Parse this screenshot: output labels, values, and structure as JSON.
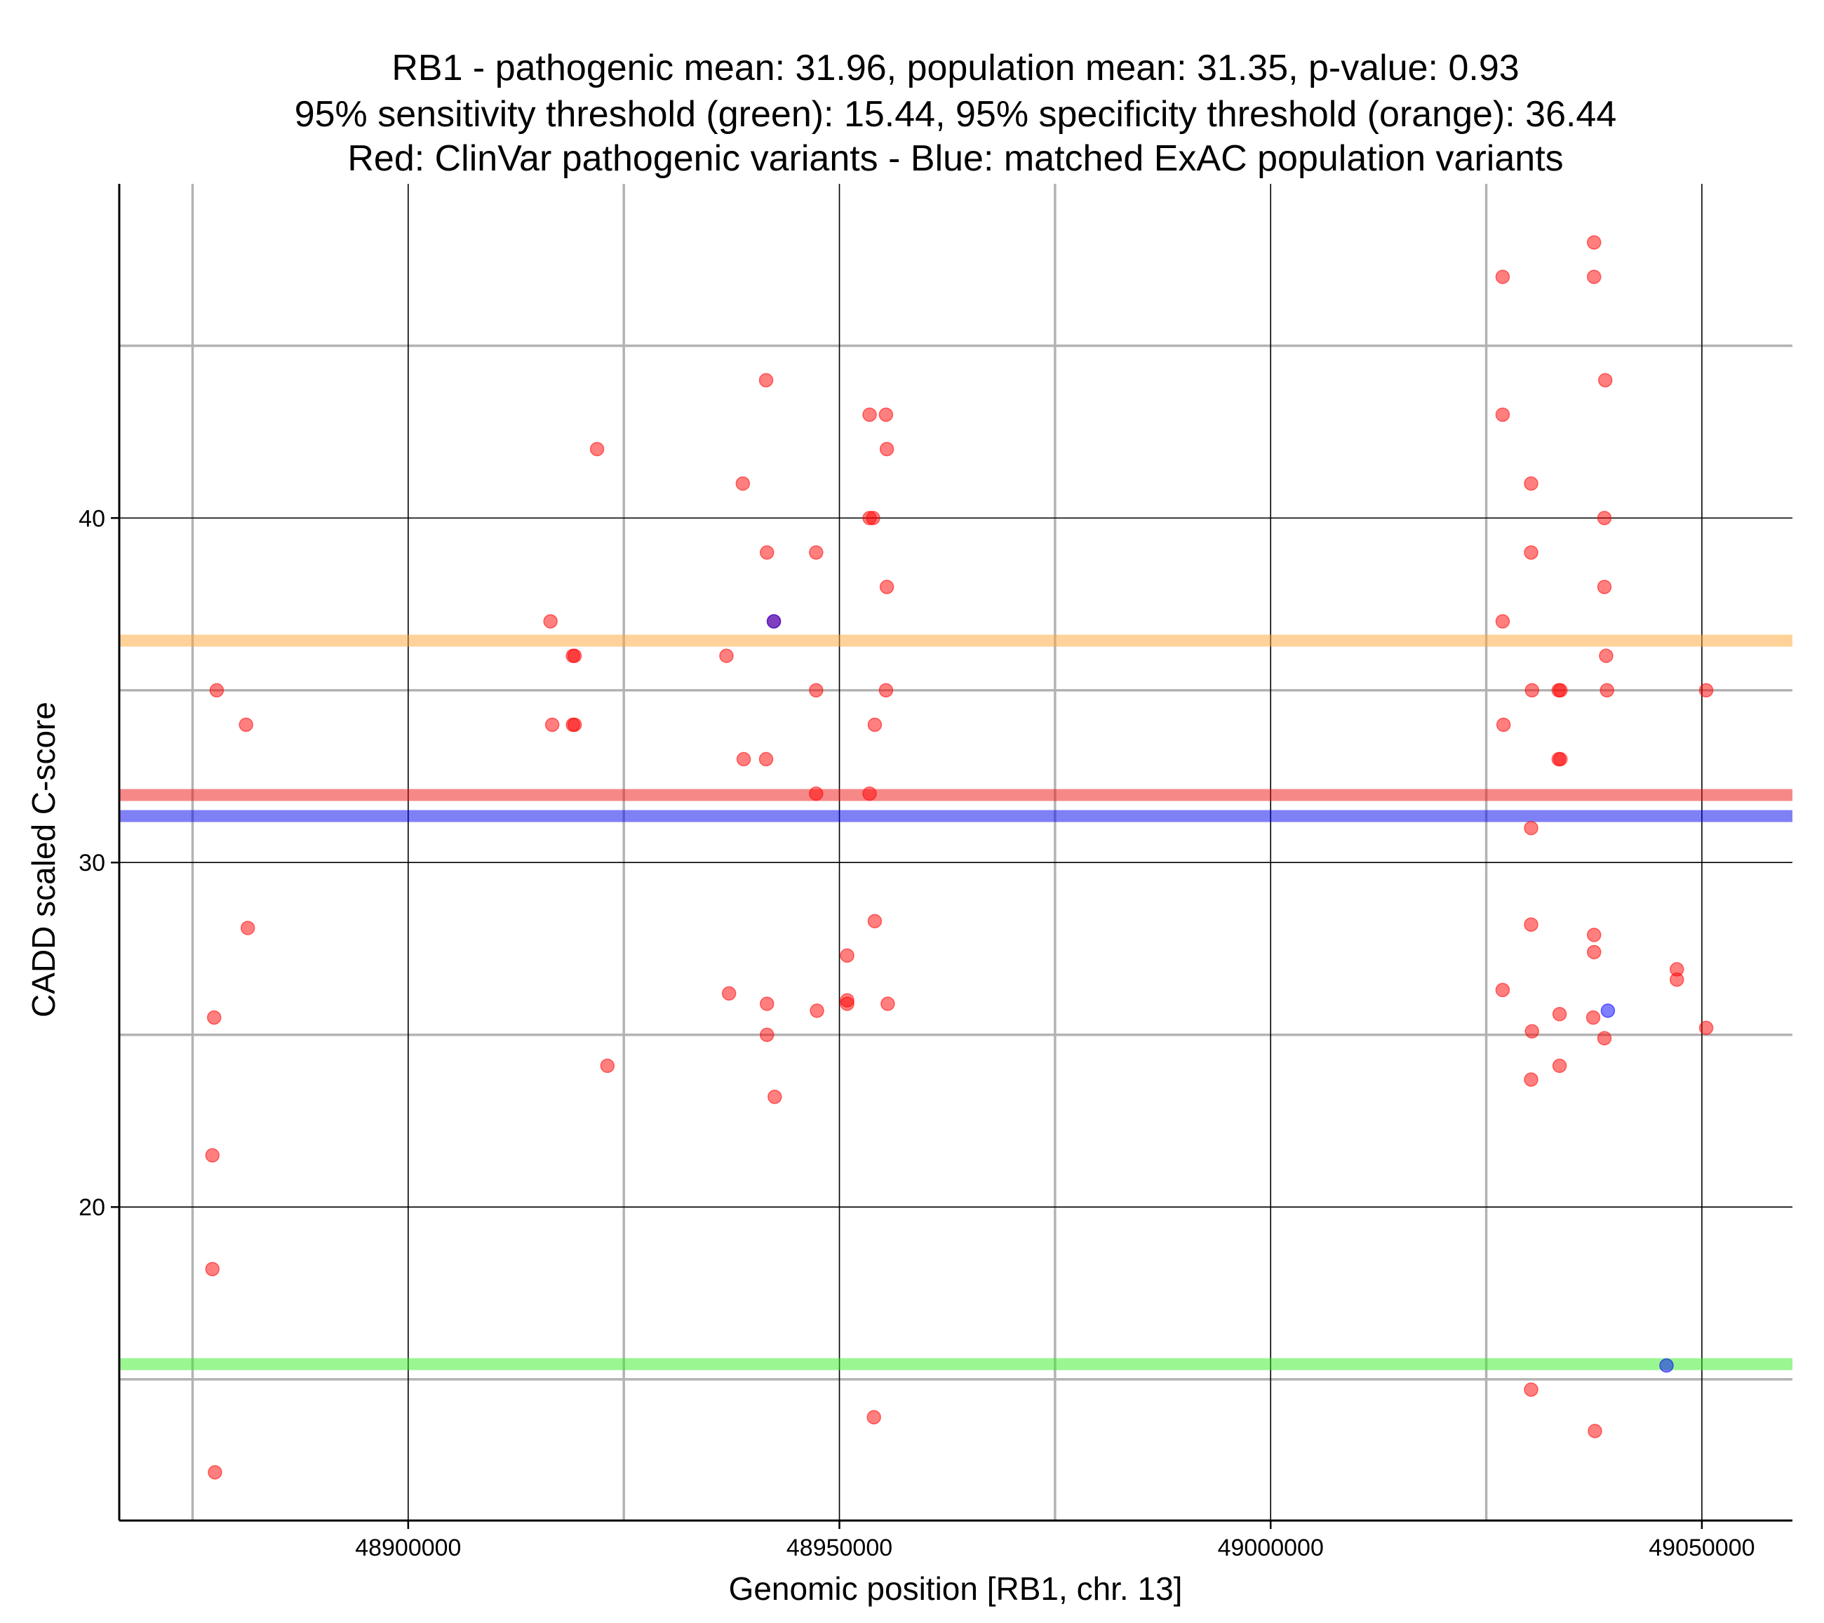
{
  "chart_data": {
    "type": "scatter",
    "title": [
      "RB1 - pathogenic mean: 31.96, population mean: 31.35, p-value: 0.93",
      "95% sensitivity threshold (green): 15.44, 95% specificity threshold (orange): 36.44",
      "Red: ClinVar pathogenic variants - Blue: matched ExAC population variants"
    ],
    "xlabel": "Genomic position [RB1, chr. 13]",
    "ylabel": "CADD scaled C-score",
    "xlim": [
      48866500,
      49060500
    ],
    "ylim": [
      10.9,
      49.7
    ],
    "x_major_ticks": [
      48900000,
      48950000,
      49000000,
      49050000
    ],
    "x_tick_labels": [
      "48900000",
      "48950000",
      "49000000",
      "49050000"
    ],
    "x_minor_grid": [
      48875000,
      48925000,
      48975000,
      49025000
    ],
    "y_major_ticks": [
      20,
      30,
      40
    ],
    "y_tick_labels": [
      "20",
      "30",
      "40"
    ],
    "y_minor_grid": [
      15,
      25,
      35,
      45
    ],
    "hlines": [
      {
        "name": "sensitivity-threshold",
        "label": "green",
        "value": 15.44,
        "color": "#33ee22"
      },
      {
        "name": "specificity-threshold",
        "label": "orange",
        "value": 36.44,
        "color": "#ffa533"
      },
      {
        "name": "pathogenic-mean",
        "label": "red",
        "value": 31.96,
        "color": "#ee1111"
      },
      {
        "name": "population-mean",
        "label": "blue",
        "value": 31.35,
        "color": "#0000ee"
      }
    ],
    "series": [
      {
        "name": "ClinVar pathogenic variants",
        "color": "#ff0000",
        "points": [
          [
            48877800,
            35.0
          ],
          [
            48877500,
            25.5
          ],
          [
            48877300,
            21.5
          ],
          [
            48877300,
            18.2
          ],
          [
            48877600,
            12.3
          ],
          [
            48881200,
            34.0
          ],
          [
            48881400,
            28.1
          ],
          [
            48916500,
            37.0
          ],
          [
            48916700,
            34.0
          ],
          [
            48919100,
            36.0
          ],
          [
            48919300,
            36.0
          ],
          [
            48919100,
            34.0
          ],
          [
            48919300,
            34.0
          ],
          [
            48921900,
            42.0
          ],
          [
            48923100,
            24.1
          ],
          [
            48936900,
            36.0
          ],
          [
            48937200,
            26.2
          ],
          [
            48938800,
            41.0
          ],
          [
            48938900,
            33.0
          ],
          [
            48941500,
            44.0
          ],
          [
            48941600,
            39.0
          ],
          [
            48941500,
            33.0
          ],
          [
            48941600,
            25.9
          ],
          [
            48941600,
            25.0
          ],
          [
            48942400,
            37.0
          ],
          [
            48942500,
            23.2
          ],
          [
            48947300,
            39.0
          ],
          [
            48947300,
            35.0
          ],
          [
            48947300,
            32.0
          ],
          [
            48947400,
            25.7
          ],
          [
            48950900,
            27.3
          ],
          [
            48950900,
            26.0
          ],
          [
            48950900,
            25.9
          ],
          [
            48953500,
            43.0
          ],
          [
            48953500,
            40.0
          ],
          [
            48953900,
            40.0
          ],
          [
            48953500,
            32.0
          ],
          [
            48954100,
            34.0
          ],
          [
            48954100,
            28.3
          ],
          [
            48954000,
            13.9
          ],
          [
            48955400,
            43.0
          ],
          [
            48955500,
            42.0
          ],
          [
            48955500,
            38.0
          ],
          [
            48955400,
            35.0
          ],
          [
            48955600,
            25.9
          ],
          [
            49026900,
            47.0
          ],
          [
            49026900,
            43.0
          ],
          [
            49026900,
            37.0
          ],
          [
            49027000,
            34.0
          ],
          [
            49026900,
            26.3
          ],
          [
            49030200,
            41.0
          ],
          [
            49030200,
            39.0
          ],
          [
            49030300,
            35.0
          ],
          [
            49030200,
            31.0
          ],
          [
            49030200,
            28.2
          ],
          [
            49030300,
            25.1
          ],
          [
            49030200,
            23.7
          ],
          [
            49030200,
            14.7
          ],
          [
            49033400,
            35.0
          ],
          [
            49033600,
            35.0
          ],
          [
            49033400,
            33.0
          ],
          [
            49033600,
            33.0
          ],
          [
            49033500,
            25.6
          ],
          [
            49033500,
            24.1
          ],
          [
            49037500,
            48.0
          ],
          [
            49037500,
            47.0
          ],
          [
            49037500,
            27.9
          ],
          [
            49037500,
            27.4
          ],
          [
            49037400,
            25.5
          ],
          [
            49037600,
            13.5
          ],
          [
            49038800,
            44.0
          ],
          [
            49038700,
            40.0
          ],
          [
            49038700,
            38.0
          ],
          [
            49038900,
            36.0
          ],
          [
            49039000,
            35.0
          ],
          [
            49038700,
            24.9
          ],
          [
            49047100,
            26.9
          ],
          [
            49047100,
            26.6
          ],
          [
            49050500,
            35.0
          ],
          [
            49050500,
            25.2
          ]
        ]
      },
      {
        "name": "matched ExAC population variants",
        "color": "#0000ff",
        "points": [
          [
            48942400,
            37.0
          ],
          [
            49039100,
            25.7
          ],
          [
            49045900,
            15.4
          ]
        ]
      }
    ]
  }
}
